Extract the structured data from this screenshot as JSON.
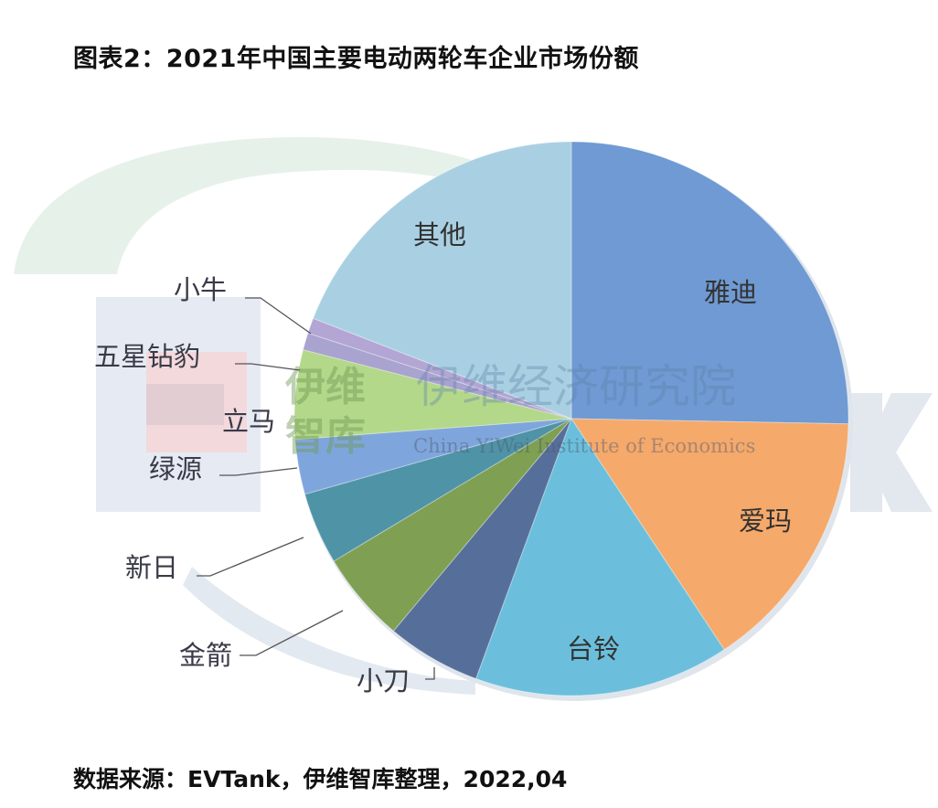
{
  "title": "图表2：2021年中国主要电动两轮车企业市场份额",
  "source": "数据来源：EVTank，伊维智库整理，2022,04",
  "watermark": {
    "cn_main": "伊维经济研究院",
    "en_main": "China YiWei Institute of Economics",
    "cn_small_1": "伊维",
    "cn_small_2": "智库",
    "brand": "EVTank"
  },
  "chart_data": {
    "type": "pie",
    "title": "2021年中国主要电动两轮车企业市场份额",
    "start_angle_deg": 0,
    "direction": "clockwise",
    "categories": [
      "雅迪",
      "爱玛",
      "台铃",
      "小刀",
      "金箭",
      "新日",
      "绿源",
      "立马",
      "五星钻豹",
      "小牛",
      "其他"
    ],
    "values": [
      25.3,
      15.4,
      14.9,
      5.5,
      5.3,
      4.2,
      3.2,
      5.2,
      1.0,
      0.9,
      19.1
    ],
    "unit": "%",
    "colors": [
      "#6f9ad3",
      "#f5a96b",
      "#6bbfdc",
      "#566f9a",
      "#7f9f53",
      "#4f93a7",
      "#7fa6dc",
      "#b3d88a",
      "#a9a3cf",
      "#b3a6d4",
      "#a9d0e2"
    ],
    "label_placement": [
      "inside",
      "inside",
      "inside",
      "outside",
      "outside",
      "outside",
      "outside",
      "outside",
      "outside",
      "outside",
      "inside"
    ],
    "legend": "none",
    "note": "Values estimated from slice angles; no data labels shown"
  }
}
